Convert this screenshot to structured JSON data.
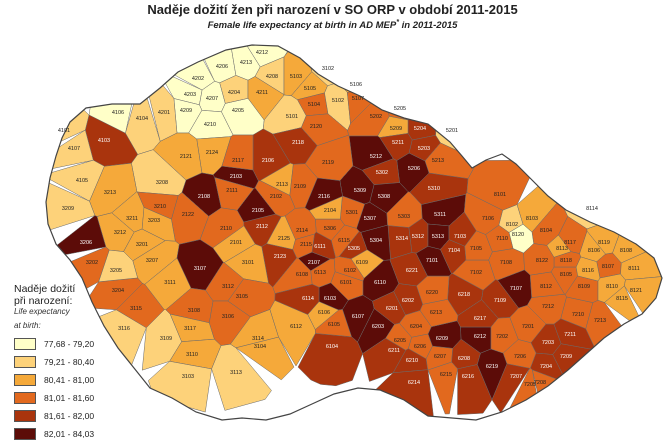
{
  "title": "Naděje dožití žen při narození v SO ORP v období 2011-2015",
  "subtitle": "Female life expectancy at birth in AD MEP",
  "subtitle_mark": "*",
  "subtitle_period": " in 2011-2015",
  "legend": {
    "title_line1": "Naděje dožití",
    "title_line2": "při narození:",
    "sub_line1": "Life expectancy",
    "sub_line2": "at birth:",
    "classes": [
      {
        "label": "77,68 - 79,20",
        "color": "#ffffc8"
      },
      {
        "label": "79,21 - 80,40",
        "color": "#fdd27a"
      },
      {
        "label": "80,41 - 81,00",
        "color": "#f5a93a"
      },
      {
        "label": "81,01 - 81,60",
        "color": "#e2691e"
      },
      {
        "label": "81,61 - 82,00",
        "color": "#a9340d"
      },
      {
        "label": "82,01 - 84,03",
        "color": "#5c0c08"
      }
    ]
  },
  "regions": [
    {
      "code": "4212",
      "cls": 0
    },
    {
      "code": "4206",
      "cls": 0
    },
    {
      "code": "4213",
      "cls": 0
    },
    {
      "code": "4208",
      "cls": 1
    },
    {
      "code": "4202",
      "cls": 0
    },
    {
      "code": "4203",
      "cls": 0
    },
    {
      "code": "4207",
      "cls": 0
    },
    {
      "code": "4209",
      "cls": 0
    },
    {
      "code": "4205",
      "cls": 0
    },
    {
      "code": "4204",
      "cls": 1
    },
    {
      "code": "4210",
      "cls": 0
    },
    {
      "code": "4211",
      "cls": 2
    },
    {
      "code": "4201",
      "cls": 1
    },
    {
      "code": "4104",
      "cls": 1
    },
    {
      "code": "4106",
      "cls": 0
    },
    {
      "code": "4103",
      "cls": 4
    },
    {
      "code": "4107",
      "cls": 1
    },
    {
      "code": "4105",
      "cls": 1
    },
    {
      "code": "4101",
      "cls": 1
    },
    {
      "code": "5103",
      "cls": 2
    },
    {
      "code": "5105",
      "cls": 2
    },
    {
      "code": "5104",
      "cls": 3
    },
    {
      "code": "5101",
      "cls": 1
    },
    {
      "code": "5102",
      "cls": 1
    },
    {
      "code": "3102",
      "cls": 1
    },
    {
      "code": "5106",
      "cls": 2
    },
    {
      "code": "5107",
      "cls": 3
    },
    {
      "code": "5202",
      "cls": 3
    },
    {
      "code": "5205",
      "cls": 3
    },
    {
      "code": "5204",
      "cls": 4
    },
    {
      "code": "5209",
      "cls": 2
    },
    {
      "code": "5201",
      "cls": 1
    },
    {
      "code": "5211",
      "cls": 4
    },
    {
      "code": "5212",
      "cls": 5
    },
    {
      "code": "5203",
      "cls": 4
    },
    {
      "code": "5213",
      "cls": 3
    },
    {
      "code": "5206",
      "cls": 5
    },
    {
      "code": "5302",
      "cls": 4
    },
    {
      "code": "5309",
      "cls": 5
    },
    {
      "code": "5308",
      "cls": 5
    },
    {
      "code": "5310",
      "cls": 4
    },
    {
      "code": "5303",
      "cls": 3
    },
    {
      "code": "5311",
      "cls": 5
    },
    {
      "code": "5312",
      "cls": 4
    },
    {
      "code": "5313",
      "cls": 5
    },
    {
      "code": "5314",
      "cls": 4
    },
    {
      "code": "5304",
      "cls": 5
    },
    {
      "code": "5305",
      "cls": 4
    },
    {
      "code": "5306",
      "cls": 3
    },
    {
      "code": "5307",
      "cls": 5
    },
    {
      "code": "5301",
      "cls": 3
    },
    {
      "code": "2118",
      "cls": 4
    },
    {
      "code": "2119",
      "cls": 3
    },
    {
      "code": "2124",
      "cls": 2
    },
    {
      "code": "2103",
      "cls": 5
    },
    {
      "code": "2106",
      "cls": 4
    },
    {
      "code": "2120",
      "cls": 3
    },
    {
      "code": "2113",
      "cls": 2
    },
    {
      "code": "2117",
      "cls": 3
    },
    {
      "code": "2121",
      "cls": 2
    },
    {
      "code": "2108",
      "cls": 5
    },
    {
      "code": "2109",
      "cls": 3
    },
    {
      "code": "2116",
      "cls": 5
    },
    {
      "code": "2104",
      "cls": 2
    },
    {
      "code": "2105",
      "cls": 5
    },
    {
      "code": "2107",
      "cls": 5
    },
    {
      "code": "2111",
      "cls": 3
    },
    {
      "code": "2112",
      "cls": 4
    },
    {
      "code": "2122",
      "cls": 3
    },
    {
      "code": "2114",
      "cls": 3
    },
    {
      "code": "2115",
      "cls": 3
    },
    {
      "code": "2123",
      "cls": 4
    },
    {
      "code": "2110",
      "cls": 3
    },
    {
      "code": "2101",
      "cls": 2
    },
    {
      "code": "2102",
      "cls": 3
    },
    {
      "code": "2125",
      "cls": 2
    },
    {
      "code": "3208",
      "cls": 1
    },
    {
      "code": "3213",
      "cls": 2
    },
    {
      "code": "3212",
      "cls": 2
    },
    {
      "code": "3211",
      "cls": 2
    },
    {
      "code": "3209",
      "cls": 1
    },
    {
      "code": "3210",
      "cls": 3
    },
    {
      "code": "3207",
      "cls": 2
    },
    {
      "code": "3206",
      "cls": 5
    },
    {
      "code": "3202",
      "cls": 3
    },
    {
      "code": "3201",
      "cls": 2
    },
    {
      "code": "3203",
      "cls": 2
    },
    {
      "code": "3204",
      "cls": 3
    },
    {
      "code": "3205",
      "cls": 1
    },
    {
      "code": "3115",
      "cls": 3
    },
    {
      "code": "3111",
      "cls": 2
    },
    {
      "code": "3107",
      "cls": 5
    },
    {
      "code": "3108",
      "cls": 3
    },
    {
      "code": "3112",
      "cls": 3
    },
    {
      "code": "3117",
      "cls": 2
    },
    {
      "code": "3106",
      "cls": 3
    },
    {
      "code": "3116",
      "cls": 1
    },
    {
      "code": "3109",
      "cls": 1
    },
    {
      "code": "3110",
      "cls": 2
    },
    {
      "code": "3103",
      "cls": 1
    },
    {
      "code": "3113",
      "cls": 1
    },
    {
      "code": "3114",
      "cls": 2
    },
    {
      "code": "3104",
      "cls": 2
    },
    {
      "code": "3101",
      "cls": 2
    },
    {
      "code": "3105",
      "cls": 3
    },
    {
      "code": "6101",
      "cls": 3
    },
    {
      "code": "6102",
      "cls": 3
    },
    {
      "code": "6103",
      "cls": 5
    },
    {
      "code": "6104",
      "cls": 4
    },
    {
      "code": "6105",
      "cls": 3
    },
    {
      "code": "6106",
      "cls": 2
    },
    {
      "code": "6107",
      "cls": 5
    },
    {
      "code": "6108",
      "cls": 3
    },
    {
      "code": "6109",
      "cls": 2
    },
    {
      "code": "6110",
      "cls": 5
    },
    {
      "code": "6111",
      "cls": 4
    },
    {
      "code": "6112",
      "cls": 2
    },
    {
      "code": "6113",
      "cls": 3
    },
    {
      "code": "6114",
      "cls": 4
    },
    {
      "code": "6115",
      "cls": 3
    },
    {
      "code": "6201",
      "cls": 4
    },
    {
      "code": "6202",
      "cls": 4
    },
    {
      "code": "6203",
      "cls": 5
    },
    {
      "code": "6204",
      "cls": 3
    },
    {
      "code": "6205",
      "cls": 3
    },
    {
      "code": "6206",
      "cls": 3
    },
    {
      "code": "6207",
      "cls": 3
    },
    {
      "code": "6208",
      "cls": 4
    },
    {
      "code": "6209",
      "cls": 5
    },
    {
      "code": "6210",
      "cls": 4
    },
    {
      "code": "6211",
      "cls": 4
    },
    {
      "code": "6212",
      "cls": 5
    },
    {
      "code": "6213",
      "cls": 3
    },
    {
      "code": "6214",
      "cls": 4
    },
    {
      "code": "6215",
      "cls": 3
    },
    {
      "code": "6216",
      "cls": 4
    },
    {
      "code": "6217",
      "cls": 4
    },
    {
      "code": "6218",
      "cls": 4
    },
    {
      "code": "6219",
      "cls": 5
    },
    {
      "code": "6220",
      "cls": 3
    },
    {
      "code": "6221",
      "cls": 4
    },
    {
      "code": "7101",
      "cls": 5
    },
    {
      "code": "7102",
      "cls": 3
    },
    {
      "code": "7103",
      "cls": 4
    },
    {
      "code": "7104",
      "cls": 4
    },
    {
      "code": "7105",
      "cls": 3
    },
    {
      "code": "7106",
      "cls": 3
    },
    {
      "code": "7107",
      "cls": 5
    },
    {
      "code": "7108",
      "cls": 3
    },
    {
      "code": "7109",
      "cls": 4
    },
    {
      "code": "7110",
      "cls": 3
    },
    {
      "code": "7201",
      "cls": 3
    },
    {
      "code": "7202",
      "cls": 3
    },
    {
      "code": "7203",
      "cls": 4
    },
    {
      "code": "7204",
      "cls": 4
    },
    {
      "code": "7205",
      "cls": 3
    },
    {
      "code": "7206",
      "cls": 3
    },
    {
      "code": "7207",
      "cls": 4
    },
    {
      "code": "7208",
      "cls": 3
    },
    {
      "code": "7209",
      "cls": 4
    },
    {
      "code": "7210",
      "cls": 3
    },
    {
      "code": "7211",
      "cls": 4
    },
    {
      "code": "7212",
      "cls": 3
    },
    {
      "code": "7213",
      "cls": 3
    },
    {
      "code": "8101",
      "cls": 3
    },
    {
      "code": "8102",
      "cls": 1
    },
    {
      "code": "8103",
      "cls": 2
    },
    {
      "code": "8104",
      "cls": 3
    },
    {
      "code": "8105",
      "cls": 3
    },
    {
      "code": "8106",
      "cls": 2
    },
    {
      "code": "8107",
      "cls": 3
    },
    {
      "code": "8108",
      "cls": 2
    },
    {
      "code": "8109",
      "cls": 3
    },
    {
      "code": "8110",
      "cls": 2
    },
    {
      "code": "8111",
      "cls": 2
    },
    {
      "code": "8112",
      "cls": 3
    },
    {
      "code": "8113",
      "cls": 2
    },
    {
      "code": "8114",
      "cls": 1
    },
    {
      "code": "8115",
      "cls": 2
    },
    {
      "code": "8116",
      "cls": 2
    },
    {
      "code": "8117",
      "cls": 3
    },
    {
      "code": "8118",
      "cls": 3
    },
    {
      "code": "8119",
      "cls": 2
    },
    {
      "code": "8120",
      "cls": 0
    },
    {
      "code": "8121",
      "cls": 2
    },
    {
      "code": "8122",
      "cls": 3
    }
  ]
}
